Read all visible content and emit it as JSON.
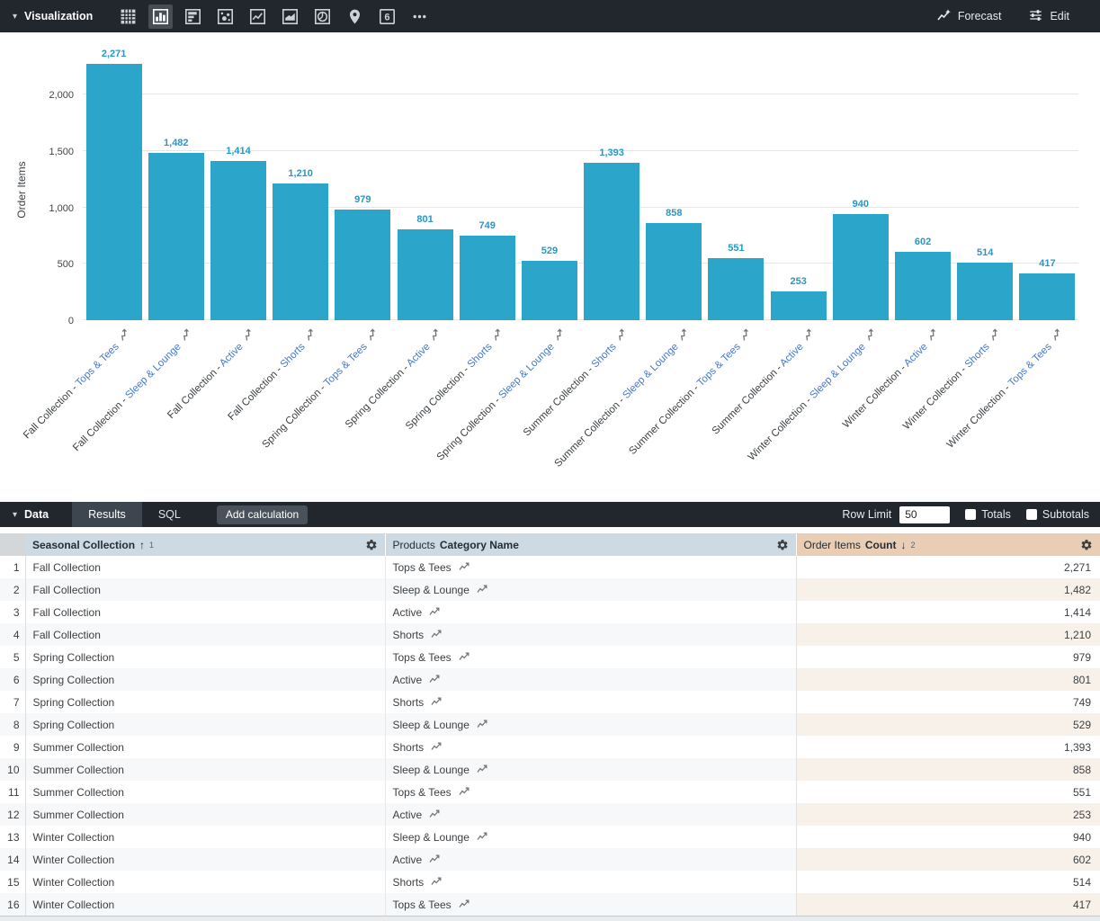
{
  "viz_toolbar": {
    "title": "Visualization",
    "chart_type_icons": [
      {
        "name": "table-chart",
        "selected": false
      },
      {
        "name": "column-chart",
        "selected": true
      },
      {
        "name": "bar-chart",
        "selected": false
      },
      {
        "name": "scatter-chart",
        "selected": false
      },
      {
        "name": "line-chart",
        "selected": false
      },
      {
        "name": "area-chart",
        "selected": false
      },
      {
        "name": "pie-chart",
        "selected": false
      },
      {
        "name": "map",
        "selected": false
      },
      {
        "name": "single-value",
        "selected": false
      },
      {
        "name": "more-options",
        "selected": false
      }
    ],
    "single_value_label": "6",
    "forecast_label": "Forecast",
    "edit_label": "Edit"
  },
  "chart_data": {
    "type": "bar",
    "title": "",
    "ylabel": "Order Items",
    "xlabel": "",
    "yticks": [
      0,
      500,
      1000,
      1500,
      2000
    ],
    "ylim": [
      0,
      2350
    ],
    "grid": true,
    "legend": false,
    "bar_color": "#2ca5cb",
    "label_color": "#2798c5",
    "categories": [
      "Fall Collection - Tops & Tees",
      "Fall Collection - Sleep & Lounge",
      "Fall Collection - Active",
      "Fall Collection - Shorts",
      "Spring Collection - Tops & Tees",
      "Spring Collection - Active",
      "Spring Collection - Shorts",
      "Spring Collection - Sleep & Lounge",
      "Summer Collection - Shorts",
      "Summer Collection - Sleep & Lounge",
      "Summer Collection - Tops & Tees",
      "Summer Collection - Active",
      "Winter Collection - Sleep & Lounge",
      "Winter Collection - Active",
      "Winter Collection - Shorts",
      "Winter Collection - Tops & Tees"
    ],
    "values": [
      2271,
      1482,
      1414,
      1210,
      979,
      801,
      749,
      529,
      1393,
      858,
      551,
      253,
      940,
      602,
      514,
      417
    ]
  },
  "data_panel": {
    "title": "Data",
    "tabs": [
      {
        "label": "Results",
        "active": true
      },
      {
        "label": "SQL",
        "active": false
      }
    ],
    "add_calculation_label": "Add calculation",
    "row_limit_label": "Row Limit",
    "row_limit_value": "50",
    "totals_label": "Totals",
    "totals_checked": false,
    "subtotals_label": "Subtotals",
    "subtotals_checked": false
  },
  "table": {
    "columns": [
      {
        "group": "",
        "label": "Seasonal Collection",
        "sort_arrow": "↑",
        "sort_index": "1",
        "type": "dimension"
      },
      {
        "group": "Products",
        "label": "Category Name",
        "sort_arrow": "",
        "sort_index": "",
        "type": "dimension"
      },
      {
        "group": "Order Items",
        "label": "Count",
        "sort_arrow": "↓",
        "sort_index": "2",
        "type": "measure"
      }
    ],
    "rows": [
      {
        "n": "1",
        "seasonal_collection": "Fall Collection",
        "category_name": "Tops & Tees",
        "count": "2,271"
      },
      {
        "n": "2",
        "seasonal_collection": "Fall Collection",
        "category_name": "Sleep & Lounge",
        "count": "1,482"
      },
      {
        "n": "3",
        "seasonal_collection": "Fall Collection",
        "category_name": "Active",
        "count": "1,414"
      },
      {
        "n": "4",
        "seasonal_collection": "Fall Collection",
        "category_name": "Shorts",
        "count": "1,210"
      },
      {
        "n": "5",
        "seasonal_collection": "Spring Collection",
        "category_name": "Tops & Tees",
        "count": "979"
      },
      {
        "n": "6",
        "seasonal_collection": "Spring Collection",
        "category_name": "Active",
        "count": "801"
      },
      {
        "n": "7",
        "seasonal_collection": "Spring Collection",
        "category_name": "Shorts",
        "count": "749"
      },
      {
        "n": "8",
        "seasonal_collection": "Spring Collection",
        "category_name": "Sleep & Lounge",
        "count": "529"
      },
      {
        "n": "9",
        "seasonal_collection": "Summer Collection",
        "category_name": "Shorts",
        "count": "1,393"
      },
      {
        "n": "10",
        "seasonal_collection": "Summer Collection",
        "category_name": "Sleep & Lounge",
        "count": "858"
      },
      {
        "n": "11",
        "seasonal_collection": "Summer Collection",
        "category_name": "Tops & Tees",
        "count": "551"
      },
      {
        "n": "12",
        "seasonal_collection": "Summer Collection",
        "category_name": "Active",
        "count": "253"
      },
      {
        "n": "13",
        "seasonal_collection": "Winter Collection",
        "category_name": "Sleep & Lounge",
        "count": "940"
      },
      {
        "n": "14",
        "seasonal_collection": "Winter Collection",
        "category_name": "Active",
        "count": "602"
      },
      {
        "n": "15",
        "seasonal_collection": "Winter Collection",
        "category_name": "Shorts",
        "count": "514"
      },
      {
        "n": "16",
        "seasonal_collection": "Winter Collection",
        "category_name": "Tops & Tees",
        "count": "417"
      }
    ]
  }
}
